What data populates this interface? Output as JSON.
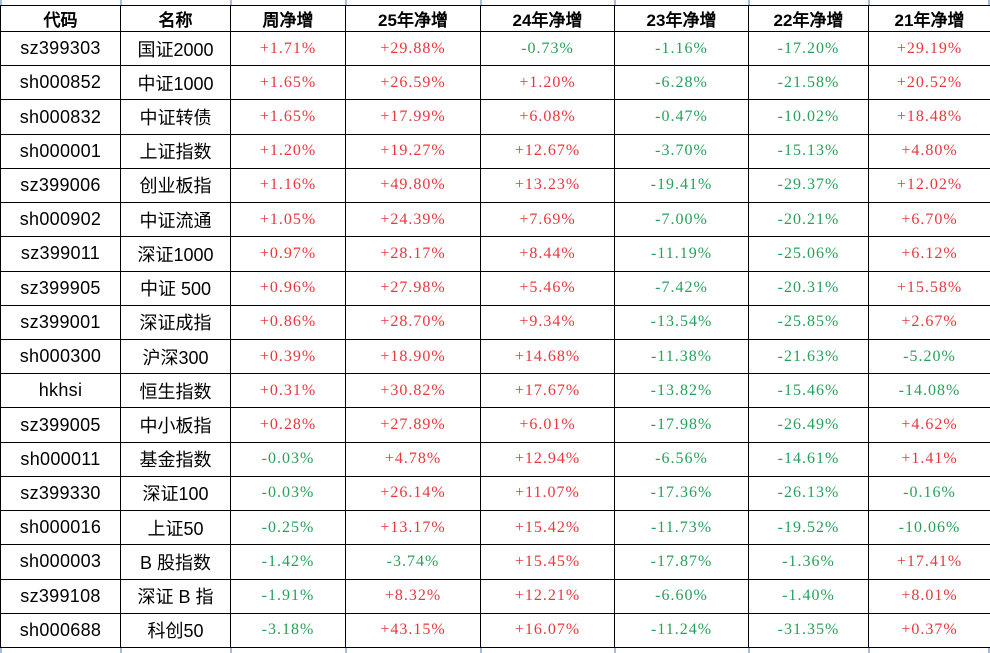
{
  "table": {
    "headers": [
      "代码",
      "名称",
      "周净增",
      "25年净增",
      "24年净增",
      "23年净增",
      "22年净增",
      "21年净增"
    ],
    "rows": [
      {
        "code": "sz399303",
        "name": "国证2000",
        "values": [
          "+1.71%",
          "+29.88%",
          "-0.73%",
          "-1.16%",
          "-17.20%",
          "+29.19%"
        ]
      },
      {
        "code": "sh000852",
        "name": "中证1000",
        "values": [
          "+1.65%",
          "+26.59%",
          "+1.20%",
          "-6.28%",
          "-21.58%",
          "+20.52%"
        ]
      },
      {
        "code": "sh000832",
        "name": "中证转债",
        "values": [
          "+1.65%",
          "+17.99%",
          "+6.08%",
          "-0.47%",
          "-10.02%",
          "+18.48%"
        ]
      },
      {
        "code": "sh000001",
        "name": "上证指数",
        "values": [
          "+1.20%",
          "+19.27%",
          "+12.67%",
          "-3.70%",
          "-15.13%",
          "+4.80%"
        ]
      },
      {
        "code": "sz399006",
        "name": "创业板指",
        "values": [
          "+1.16%",
          "+49.80%",
          "+13.23%",
          "-19.41%",
          "-29.37%",
          "+12.02%"
        ]
      },
      {
        "code": "sh000902",
        "name": "中证流通",
        "values": [
          "+1.05%",
          "+24.39%",
          "+7.69%",
          "-7.00%",
          "-20.21%",
          "+6.70%"
        ]
      },
      {
        "code": "sz399011",
        "name": "深证1000",
        "values": [
          "+0.97%",
          "+28.17%",
          "+8.44%",
          "-11.19%",
          "-25.06%",
          "+6.12%"
        ]
      },
      {
        "code": "sz399905",
        "name": "中证 500",
        "values": [
          "+0.96%",
          "+27.98%",
          "+5.46%",
          "-7.42%",
          "-20.31%",
          "+15.58%"
        ]
      },
      {
        "code": "sz399001",
        "name": "深证成指",
        "values": [
          "+0.86%",
          "+28.70%",
          "+9.34%",
          "-13.54%",
          "-25.85%",
          "+2.67%"
        ]
      },
      {
        "code": "sh000300",
        "name": "沪深300",
        "values": [
          "+0.39%",
          "+18.90%",
          "+14.68%",
          "-11.38%",
          "-21.63%",
          "-5.20%"
        ]
      },
      {
        "code": "hkhsi",
        "name": "恒生指数",
        "values": [
          "+0.31%",
          "+30.82%",
          "+17.67%",
          "-13.82%",
          "-15.46%",
          "-14.08%"
        ]
      },
      {
        "code": "sz399005",
        "name": "中小板指",
        "values": [
          "+0.28%",
          "+27.89%",
          "+6.01%",
          "-17.98%",
          "-26.49%",
          "+4.62%"
        ]
      },
      {
        "code": "sh000011",
        "name": "基金指数",
        "values": [
          "-0.03%",
          "+4.78%",
          "+12.94%",
          "-6.56%",
          "-14.61%",
          "+1.41%"
        ]
      },
      {
        "code": "sz399330",
        "name": "深证100",
        "values": [
          "-0.03%",
          "+26.14%",
          "+11.07%",
          "-17.36%",
          "-26.13%",
          "-0.16%"
        ]
      },
      {
        "code": "sh000016",
        "name": "上证50",
        "values": [
          "-0.25%",
          "+13.17%",
          "+15.42%",
          "-11.73%",
          "-19.52%",
          "-10.06%"
        ]
      },
      {
        "code": "sh000003",
        "name": "B 股指数",
        "values": [
          "-1.42%",
          "-3.74%",
          "+15.45%",
          "-17.87%",
          "-1.36%",
          "+17.41%"
        ]
      },
      {
        "code": "sz399108",
        "name": "深证 B 指",
        "values": [
          "-1.91%",
          "+8.32%",
          "+12.21%",
          "-6.60%",
          "-1.40%",
          "+8.01%"
        ]
      },
      {
        "code": "sh000688",
        "name": "科创50",
        "values": [
          "-3.18%",
          "+43.15%",
          "+16.07%",
          "-11.24%",
          "-31.35%",
          "+0.37%"
        ]
      }
    ]
  },
  "colors": {
    "positive": "#e8373d",
    "negative": "#27a05a",
    "gridline": "#a7bcd9"
  }
}
